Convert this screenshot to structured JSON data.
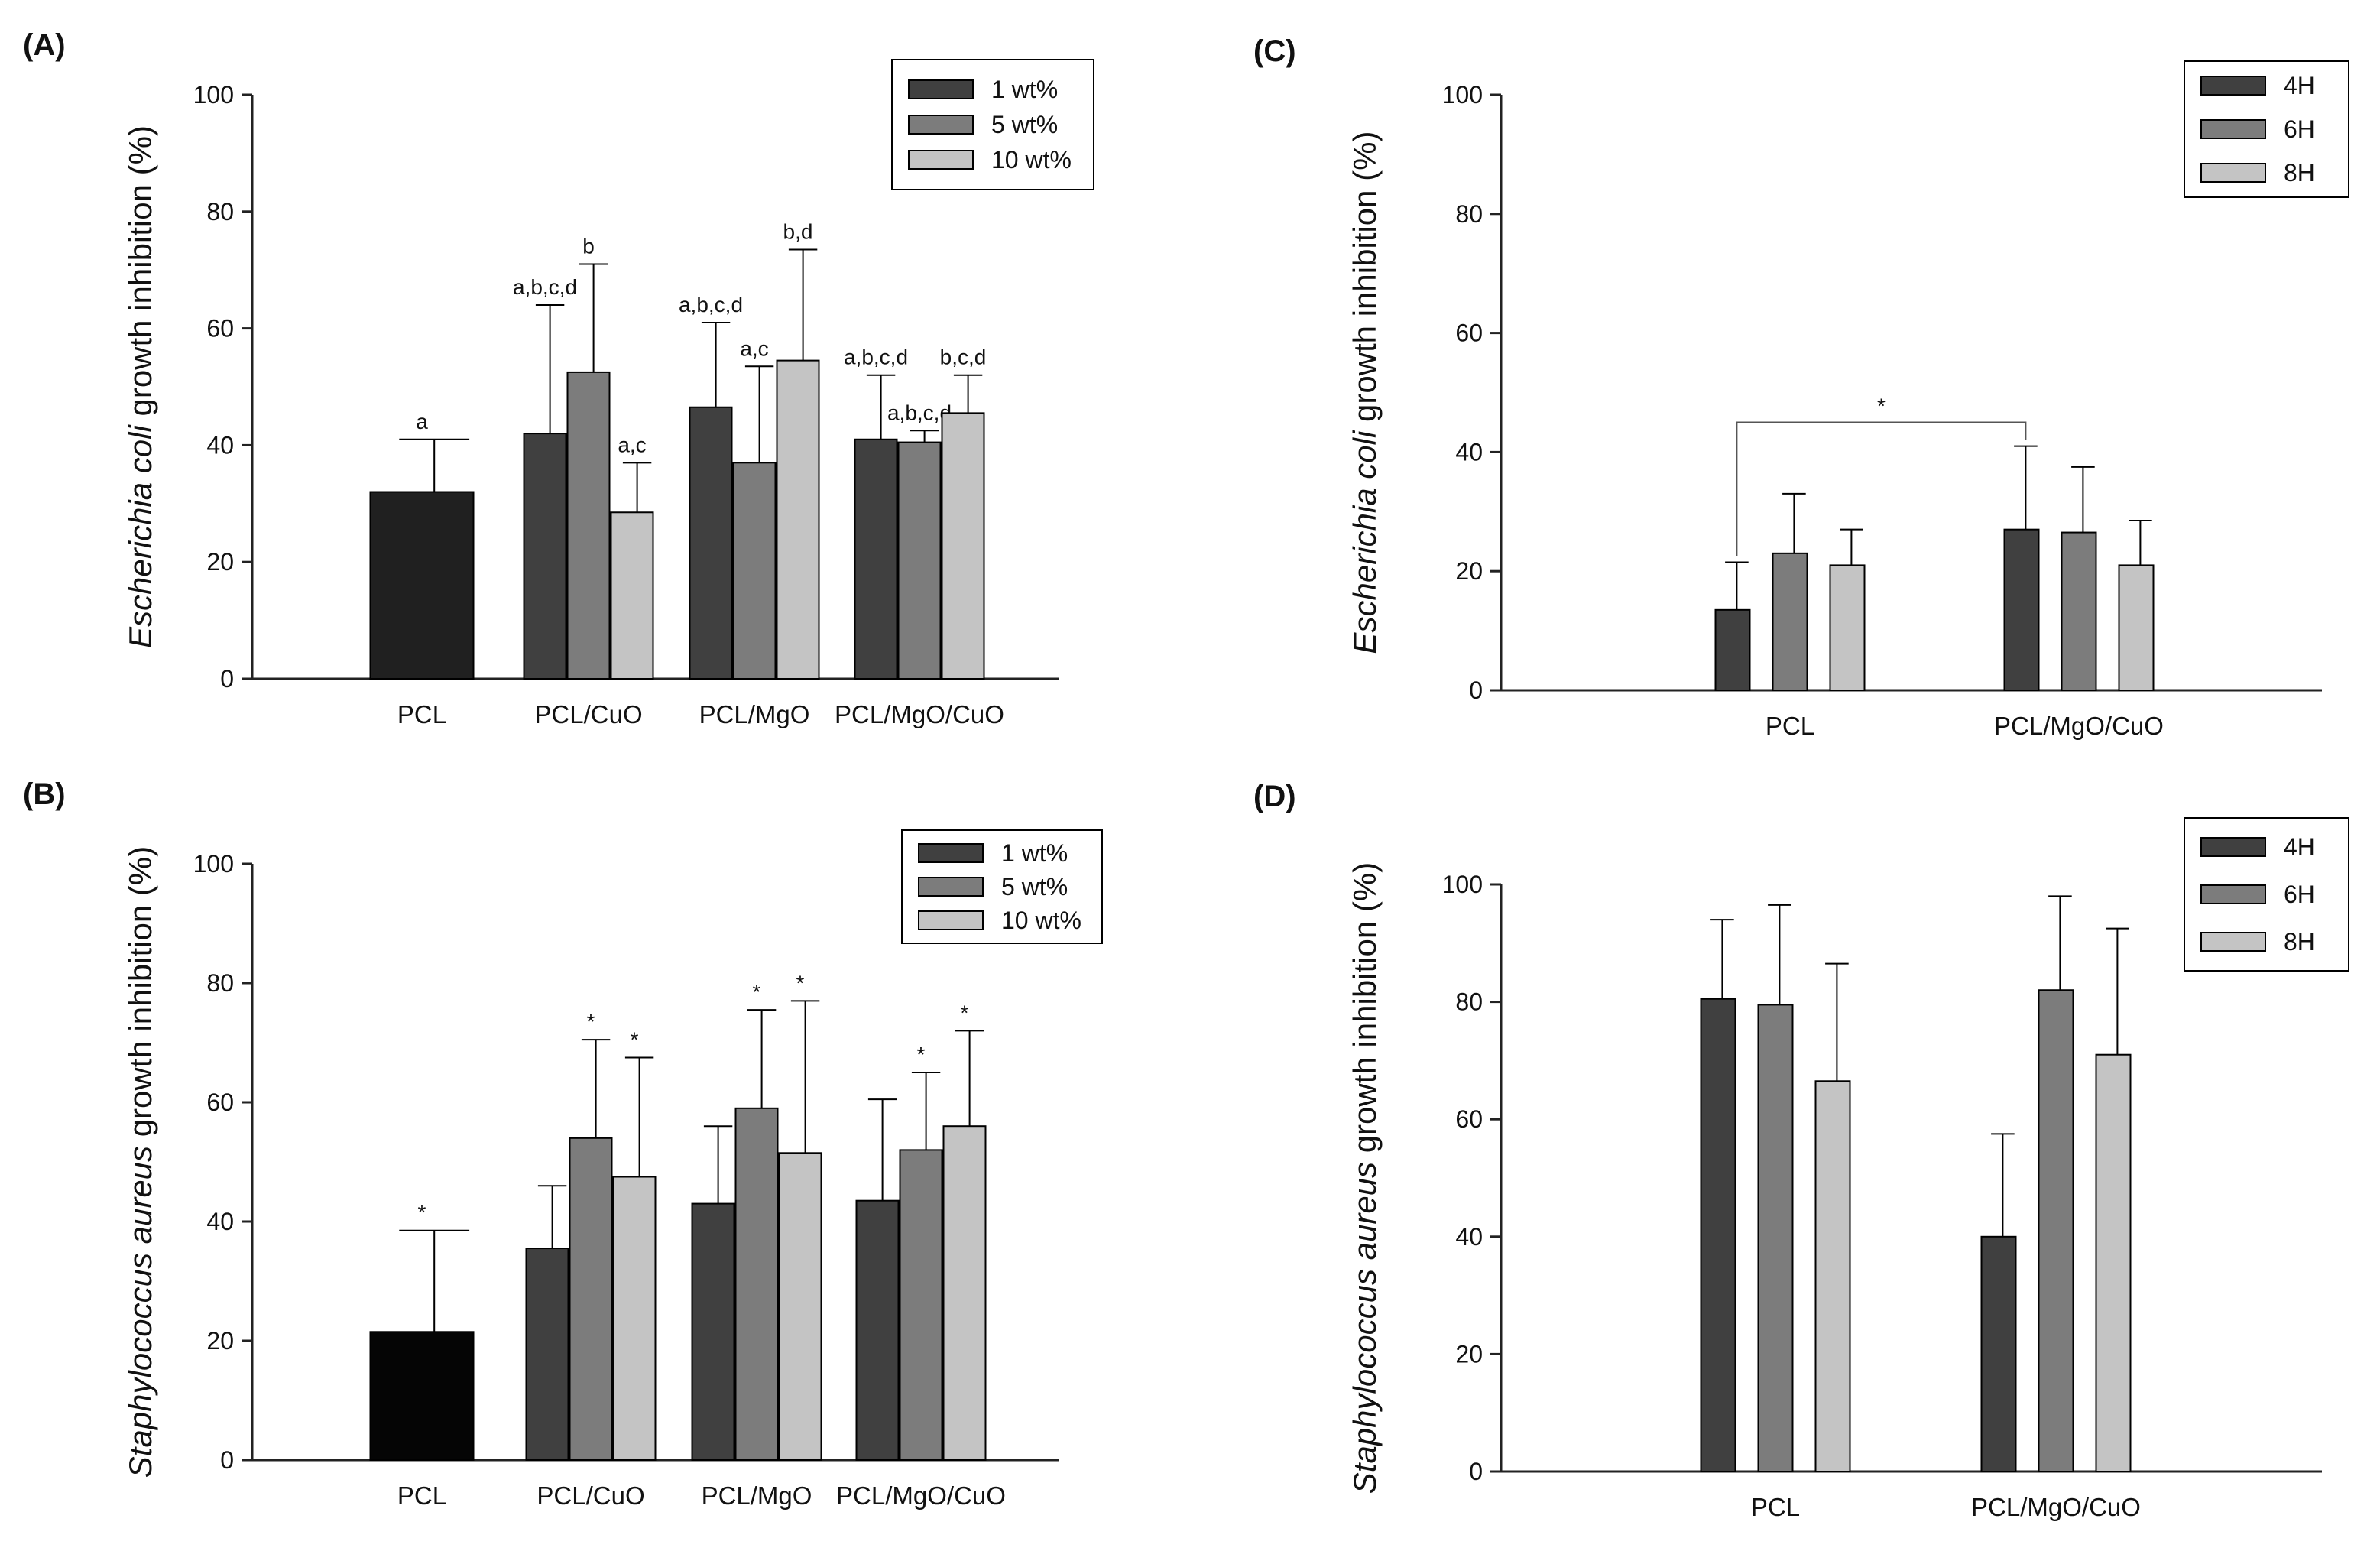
{
  "colors": {
    "dark": "#404040",
    "mid": "#7c7c7c",
    "light": "#c4c4c4",
    "pcl_a": "#202020",
    "pcl_b": "#050505",
    "axis": "#222222"
  },
  "chart_data": [
    {
      "id": "A",
      "type": "bar",
      "panel_label": "(A)",
      "ylabel_italic": "Escherichia coli",
      "ylabel_rest": " growth inhibition (%)",
      "ylim": [
        0,
        100
      ],
      "yticks": [
        "0",
        "20",
        "40",
        "60",
        "80",
        "100"
      ],
      "categories": [
        "PCL",
        "PCL/CuO",
        "PCL/MgO",
        "PCL/MgO/CuO"
      ],
      "legend": [
        "1 wt%",
        "5 wt%",
        "10 wt%"
      ],
      "single_bar": {
        "category": "PCL",
        "value": 32,
        "error": 9,
        "annotation": "a"
      },
      "series": [
        {
          "name": "1 wt%",
          "values": [
            null,
            42,
            46.5,
            41
          ],
          "errors": [
            null,
            22,
            14.5,
            11
          ],
          "annotations": [
            null,
            "a,b,c,d",
            "a,b,c,d",
            "a,b,c,d"
          ]
        },
        {
          "name": "5 wt%",
          "values": [
            null,
            52.5,
            37,
            40.5
          ],
          "errors": [
            null,
            18.5,
            16.5,
            2
          ],
          "annotations": [
            null,
            "b",
            "a,c",
            "a,b,c,d"
          ]
        },
        {
          "name": "10 wt%",
          "values": [
            null,
            28.5,
            54.5,
            45.5
          ],
          "errors": [
            null,
            8.5,
            19,
            6.5
          ],
          "annotations": [
            null,
            "a,c",
            "b,d",
            "b,c,d"
          ]
        }
      ]
    },
    {
      "id": "B",
      "type": "bar",
      "panel_label": "(B)",
      "ylabel_italic": "Staphylococcus aureus",
      "ylabel_rest": " growth inhibition (%)",
      "ylim": [
        0,
        100
      ],
      "yticks": [
        "0",
        "20",
        "40",
        "60",
        "80",
        "100"
      ],
      "categories": [
        "PCL",
        "PCL/CuO",
        "PCL/MgO",
        "PCL/MgO/CuO"
      ],
      "legend": [
        "1 wt%",
        "5 wt%",
        "10 wt%"
      ],
      "single_bar": {
        "category": "PCL",
        "value": 21.5,
        "error": 17,
        "annotation": "*"
      },
      "series": [
        {
          "name": "1 wt%",
          "values": [
            null,
            35.5,
            43,
            43.5
          ],
          "errors": [
            null,
            10.5,
            13,
            17
          ],
          "annotations": [
            null,
            null,
            null,
            null
          ]
        },
        {
          "name": "5 wt%",
          "values": [
            null,
            54,
            59,
            52
          ],
          "errors": [
            null,
            16.5,
            16.5,
            13
          ],
          "annotations": [
            null,
            "*",
            "*",
            "*"
          ]
        },
        {
          "name": "10 wt%",
          "values": [
            null,
            47.5,
            51.5,
            56
          ],
          "errors": [
            null,
            20,
            25.5,
            16
          ],
          "annotations": [
            null,
            "*",
            "*",
            "*"
          ]
        }
      ]
    },
    {
      "id": "C",
      "type": "bar",
      "panel_label": "(C)",
      "ylabel_italic": "Escherichia coli",
      "ylabel_rest": " growth inhibition (%)",
      "ylim": [
        0,
        100
      ],
      "yticks": [
        "0",
        "20",
        "40",
        "60",
        "80",
        "100"
      ],
      "categories": [
        "PCL",
        "PCL/MgO/CuO"
      ],
      "legend": [
        "4H",
        "6H",
        "8H"
      ],
      "series": [
        {
          "name": "4H",
          "values": [
            13.5,
            27
          ],
          "errors": [
            8,
            14
          ]
        },
        {
          "name": "6H",
          "values": [
            23,
            26.5
          ],
          "errors": [
            10,
            11
          ]
        },
        {
          "name": "8H",
          "values": [
            21,
            21
          ],
          "errors": [
            6,
            7.5
          ]
        }
      ],
      "significance": {
        "from_category": 0,
        "to_category": 1,
        "series": 0,
        "level": 45,
        "label": "*"
      }
    },
    {
      "id": "D",
      "type": "bar",
      "panel_label": "(D)",
      "ylabel_italic": "Staphylococcus aureus",
      "ylabel_rest": " growth inhibition (%)",
      "ylim": [
        0,
        100
      ],
      "yticks": [
        "0",
        "20",
        "40",
        "60",
        "80",
        "100"
      ],
      "categories": [
        "PCL",
        "PCL/MgO/CuO"
      ],
      "legend": [
        "4H",
        "6H",
        "8H"
      ],
      "series": [
        {
          "name": "4H",
          "values": [
            80.5,
            40
          ],
          "errors": [
            13.5,
            17.5
          ]
        },
        {
          "name": "6H",
          "values": [
            79.5,
            82
          ],
          "errors": [
            17,
            16
          ]
        },
        {
          "name": "8H",
          "values": [
            66.5,
            71
          ],
          "errors": [
            20,
            21.5
          ]
        }
      ]
    }
  ]
}
